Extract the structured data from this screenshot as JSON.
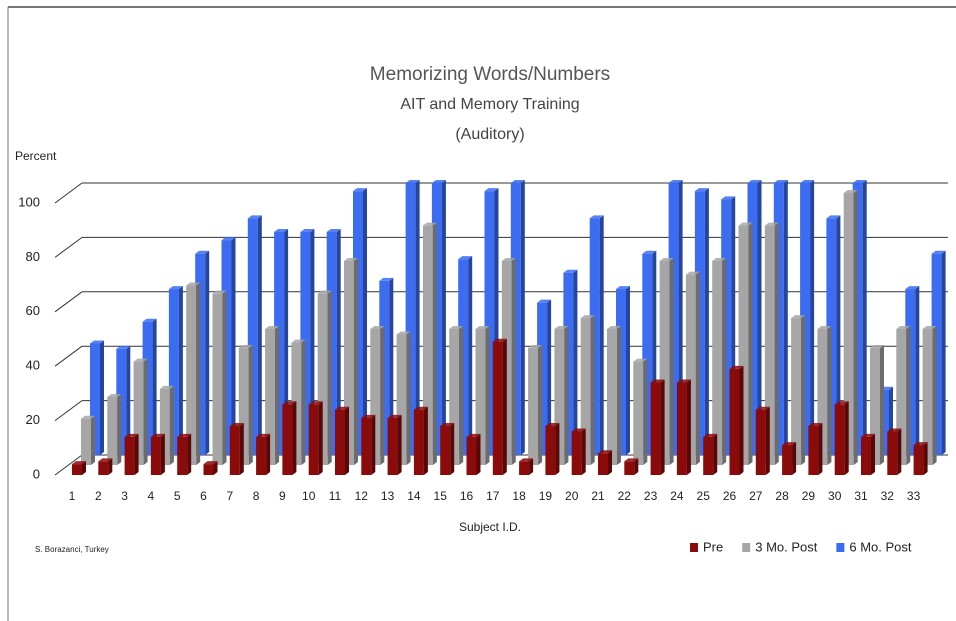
{
  "chart_data": {
    "type": "bar3d",
    "title": "Memorizing Words/Numbers",
    "subtitle": "AIT and Memory Training",
    "subtitle2": "(Auditory)",
    "y_label": "Percent",
    "x_label": "Subject I.D.",
    "source": "S. Borazanci, Turkey",
    "legend_position": "bottom-right",
    "categories": [
      "1",
      "2",
      "3",
      "4",
      "5",
      "6",
      "7",
      "8",
      "9",
      "10",
      "11",
      "12",
      "13",
      "14",
      "15",
      "16",
      "17",
      "18",
      "19",
      "20",
      "21",
      "22",
      "23",
      "24",
      "25",
      "26",
      "27",
      "28",
      "29",
      "30",
      "31",
      "32",
      "33"
    ],
    "series": [
      {
        "name": "Pre",
        "color": "#8b0a0a",
        "values": [
          4,
          5,
          14,
          14,
          14,
          4,
          18,
          14,
          26,
          26,
          24,
          21,
          21,
          24,
          18,
          14,
          49,
          5,
          18,
          16,
          8,
          5,
          34,
          34,
          14,
          39,
          24,
          11,
          18,
          26,
          14,
          16,
          11
        ]
      },
      {
        "name": "3 Mo. Post",
        "color": "#a6a6a6",
        "values": [
          17,
          25,
          38,
          28,
          66,
          63,
          43,
          50,
          45,
          63,
          75,
          50,
          48,
          88,
          50,
          50,
          75,
          43,
          50,
          54,
          50,
          38,
          75,
          70,
          75,
          88,
          88,
          54,
          50,
          100,
          43,
          50,
          50
        ]
      },
      {
        "name": "6 Mo. Post",
        "color": "#3b6cf2",
        "values": [
          41,
          39,
          49,
          61,
          74,
          79,
          87,
          82,
          82,
          82,
          97,
          64,
          100,
          100,
          72,
          97,
          100,
          56,
          67,
          87,
          61,
          74,
          100,
          97,
          94,
          100,
          100,
          100,
          87,
          100,
          24,
          61,
          74
        ]
      }
    ],
    "ylim": [
      0,
      100
    ],
    "yticks": [
      0,
      20,
      40,
      60,
      80,
      100
    ],
    "grid": true
  }
}
